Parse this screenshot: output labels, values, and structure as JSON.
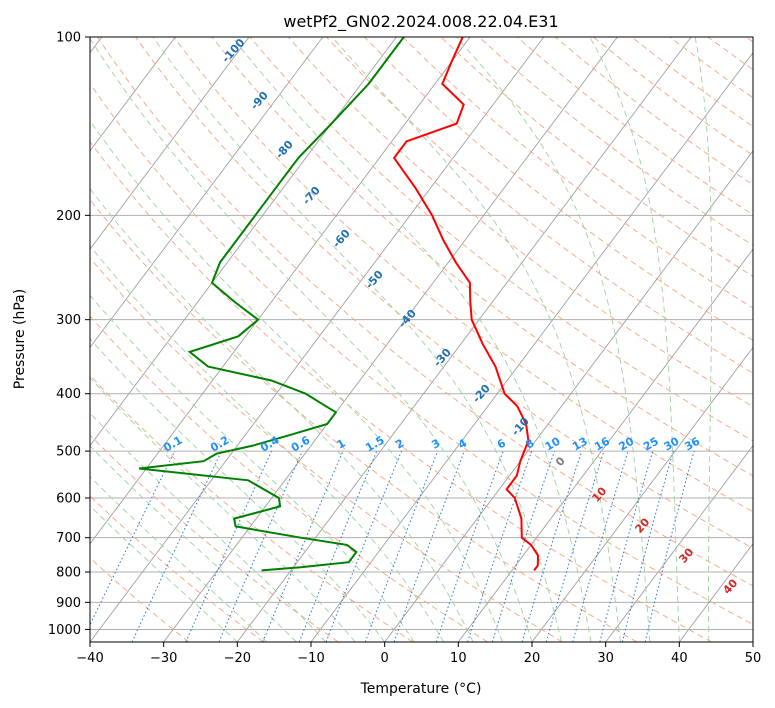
{
  "chart_data": {
    "type": "line",
    "diagram": "Skew-T log-P",
    "title": "wetPf2_GN02.2024.008.22.04.E31",
    "xlabel": "Temperature (°C)",
    "ylabel": "Pressure (hPa)",
    "xlim": [
      -40,
      50
    ],
    "ylim": [
      1050,
      100
    ],
    "y_scale": "log",
    "grid": true,
    "x_ticks": [
      "−40",
      "−30",
      "−20",
      "−10",
      "0",
      "10",
      "20",
      "30",
      "40",
      "50"
    ],
    "x_tick_values": [
      -40,
      -30,
      -20,
      -10,
      0,
      10,
      20,
      30,
      40,
      50
    ],
    "y_ticks": [
      "100",
      "200",
      "300",
      "400",
      "500",
      "600",
      "700",
      "800",
      "900",
      "1000"
    ],
    "y_tick_values": [
      100,
      200,
      300,
      400,
      500,
      600,
      700,
      800,
      900,
      1000
    ],
    "series": [
      {
        "role": "temperature",
        "color": "#ff0000",
        "points": [
          [
            100,
            -51
          ],
          [
            110,
            -50
          ],
          [
            120,
            -49
          ],
          [
            130,
            -44
          ],
          [
            140,
            -43
          ],
          [
            150,
            -48
          ],
          [
            160,
            -48
          ],
          [
            180,
            -42
          ],
          [
            200,
            -37
          ],
          [
            220,
            -33
          ],
          [
            240,
            -29
          ],
          [
            260,
            -25
          ],
          [
            280,
            -23
          ],
          [
            300,
            -21
          ],
          [
            330,
            -17
          ],
          [
            360,
            -13
          ],
          [
            400,
            -9
          ],
          [
            420,
            -6
          ],
          [
            450,
            -3
          ],
          [
            480,
            -1
          ],
          [
            520,
            0
          ],
          [
            550,
            1
          ],
          [
            580,
            1
          ],
          [
            600,
            3
          ],
          [
            650,
            6
          ],
          [
            700,
            8
          ],
          [
            720,
            10
          ],
          [
            750,
            12
          ],
          [
            780,
            13
          ],
          [
            795,
            13
          ]
        ]
      },
      {
        "role": "dewpoint",
        "color": "#008000",
        "points": [
          [
            100,
            -59
          ],
          [
            110,
            -59
          ],
          [
            120,
            -59
          ],
          [
            140,
            -60
          ],
          [
            160,
            -61
          ],
          [
            180,
            -61
          ],
          [
            200,
            -61
          ],
          [
            220,
            -61
          ],
          [
            240,
            -61
          ],
          [
            260,
            -60
          ],
          [
            280,
            -55
          ],
          [
            300,
            -50
          ],
          [
            320,
            -51
          ],
          [
            340,
            -56
          ],
          [
            360,
            -52
          ],
          [
            380,
            -42
          ],
          [
            400,
            -36
          ],
          [
            420,
            -32
          ],
          [
            430,
            -30
          ],
          [
            450,
            -30
          ],
          [
            470,
            -34
          ],
          [
            490,
            -38
          ],
          [
            505,
            -42
          ],
          [
            520,
            -43
          ],
          [
            535,
            -51
          ],
          [
            560,
            -35
          ],
          [
            600,
            -29
          ],
          [
            620,
            -28
          ],
          [
            650,
            -33
          ],
          [
            670,
            -32
          ],
          [
            700,
            -22
          ],
          [
            720,
            -15
          ],
          [
            740,
            -13
          ],
          [
            770,
            -13
          ],
          [
            785,
            -19
          ],
          [
            795,
            -24
          ]
        ]
      }
    ],
    "dry_adiabat_labels": [
      "-100",
      "-90",
      "-80",
      "-70",
      "-60",
      "-50",
      "-40",
      "-30",
      "-20",
      "-10",
      "0",
      "10",
      "20",
      "30",
      "40"
    ],
    "mixing_ratio_labels": [
      "0.1",
      "0.2",
      "0.4",
      "0.6",
      "1",
      "1.5",
      "2",
      "3",
      "4",
      "6",
      "8",
      "10",
      "13",
      "16",
      "20",
      "25",
      "30",
      "36"
    ],
    "mixing_ratio_values": [
      0.1,
      0.2,
      0.4,
      0.6,
      1,
      1.5,
      2,
      3,
      4,
      6,
      8,
      10,
      13,
      16,
      20,
      25,
      30,
      36
    ],
    "colors": {
      "temperature": "#ff0000",
      "dewpoint": "#008000",
      "isotherm": "#a0a0a0",
      "dry_adiabat": "#f4a582",
      "moist_adiabat": "#9fd19f",
      "mixing_ratio": "#1f77d4",
      "label_cold": "#1f6fb4",
      "label_warm": "#d62728",
      "label_zero": "#7f7f7f",
      "label_mixing": "#1e90ff"
    }
  }
}
